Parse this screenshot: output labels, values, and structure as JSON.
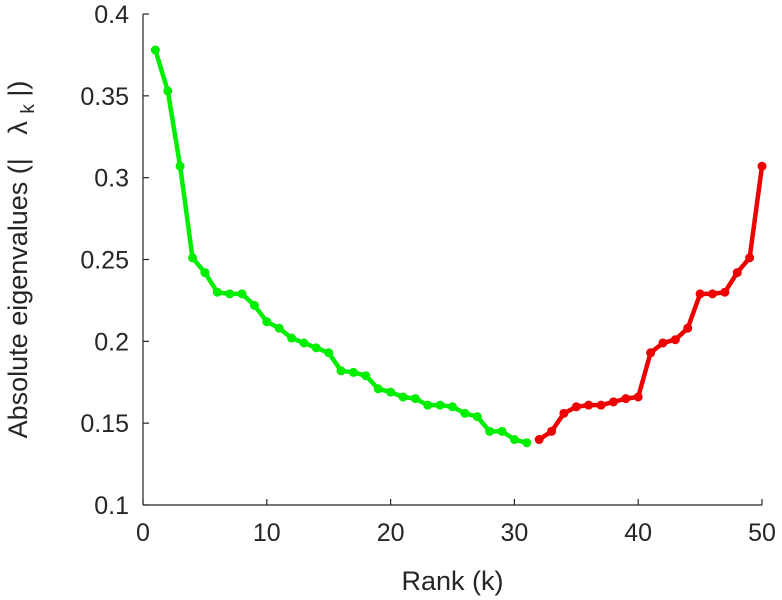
{
  "chart_data": {
    "type": "line",
    "xlabel": "Rank (k)",
    "ylabel": {
      "prefix": "Absolute eigenvalues (|",
      "symbol": "λ",
      "subscript": "k",
      "suffix": "|)"
    },
    "xlim": [
      0,
      50
    ],
    "ylim": [
      0.1,
      0.4
    ],
    "xticks": [
      0,
      10,
      20,
      30,
      40,
      50
    ],
    "yticks": [
      0.1,
      0.15,
      0.2,
      0.25,
      0.3,
      0.35,
      0.4
    ],
    "xtick_labels": [
      "0",
      "10",
      "20",
      "30",
      "40",
      "50"
    ],
    "ytick_labels": [
      "0.1",
      "0.15",
      "0.2",
      "0.25",
      "0.3",
      "0.35",
      "0.4"
    ],
    "grid": false,
    "series": [
      {
        "color": "#00ee00",
        "x": [
          1,
          2,
          3,
          4,
          5,
          6,
          7,
          8,
          9,
          10,
          11,
          12,
          13,
          14,
          15,
          16,
          17,
          18,
          19,
          20,
          21,
          22,
          23,
          24,
          25,
          26,
          27,
          28,
          29,
          30,
          31
        ],
        "y": [
          0.378,
          0.353,
          0.307,
          0.251,
          0.242,
          0.23,
          0.229,
          0.229,
          0.222,
          0.212,
          0.208,
          0.202,
          0.199,
          0.196,
          0.193,
          0.182,
          0.181,
          0.179,
          0.171,
          0.169,
          0.166,
          0.165,
          0.161,
          0.161,
          0.16,
          0.156,
          0.154,
          0.145,
          0.145,
          0.14,
          0.138
        ]
      },
      {
        "color": "#ee0000",
        "x": [
          32,
          33,
          34,
          35,
          36,
          37,
          38,
          39,
          40,
          41,
          42,
          43,
          44,
          45,
          46,
          47,
          48,
          49,
          50
        ],
        "y": [
          0.14,
          0.145,
          0.156,
          0.16,
          0.161,
          0.161,
          0.163,
          0.165,
          0.166,
          0.193,
          0.199,
          0.201,
          0.208,
          0.229,
          0.229,
          0.23,
          0.242,
          0.251,
          0.307
        ]
      }
    ]
  }
}
